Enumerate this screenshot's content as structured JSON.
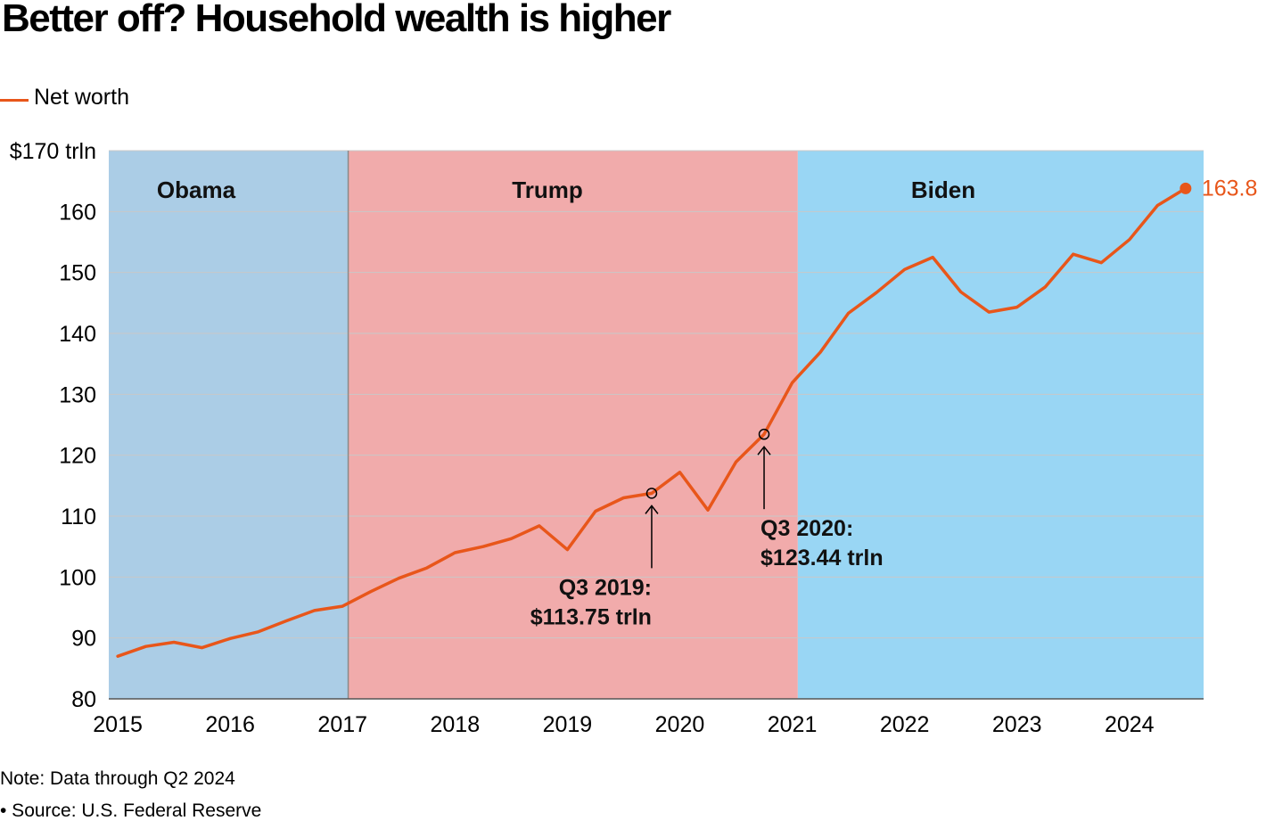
{
  "title": "Better off? Household wealth is higher",
  "legend": {
    "label": "Net worth",
    "color": "#e8561a"
  },
  "colors": {
    "obama": "#abcde6",
    "trump": "#f1abab",
    "biden": "#99d6f4",
    "line": "#e8561a",
    "grid": "#c8c8c8"
  },
  "chart_data": {
    "type": "line",
    "title": "Better off? Household wealth is higher",
    "series": [
      {
        "name": "Net worth",
        "x": [
          2015.0,
          2015.25,
          2015.5,
          2015.75,
          2016.0,
          2016.25,
          2016.5,
          2016.75,
          2017.0,
          2017.25,
          2017.5,
          2017.75,
          2018.0,
          2018.25,
          2018.5,
          2018.75,
          2019.0,
          2019.25,
          2019.5,
          2019.75,
          2020.0,
          2020.25,
          2020.5,
          2020.75,
          2021.0,
          2021.25,
          2021.5,
          2021.75,
          2022.0,
          2022.25,
          2022.5,
          2022.75,
          2023.0,
          2023.25,
          2023.5,
          2023.75,
          2024.0,
          2024.25,
          2024.5
        ],
        "values": [
          87.0,
          88.6,
          89.3,
          88.4,
          89.9,
          91.0,
          92.8,
          94.5,
          95.2,
          97.6,
          99.8,
          101.5,
          104.0,
          105.0,
          106.3,
          108.4,
          104.5,
          110.8,
          113.0,
          113.75,
          117.2,
          111.0,
          118.9,
          123.44,
          131.9,
          136.9,
          143.3,
          146.7,
          150.5,
          152.5,
          146.8,
          143.5,
          144.3,
          147.6,
          153.0,
          151.6,
          155.4,
          161.0,
          163.8
        ]
      }
    ],
    "xlim": [
      2014.92,
      2024.66
    ],
    "ylim": [
      80,
      170
    ],
    "x_ticks": [
      2015,
      2016,
      2017,
      2018,
      2019,
      2020,
      2021,
      2022,
      2023,
      2024
    ],
    "x_tick_labels": [
      "2015",
      "2016",
      "2017",
      "2018",
      "2019",
      "2020",
      "2021",
      "2022",
      "2023",
      "2024"
    ],
    "y_ticks": [
      80,
      90,
      100,
      110,
      120,
      130,
      140,
      150,
      160,
      170
    ],
    "y_tick_labels": [
      "80",
      "90",
      "100",
      "110",
      "120",
      "130",
      "140",
      "150",
      "160",
      "$170 trln"
    ],
    "grid": true,
    "legend_position": "top-left",
    "regions": [
      {
        "label": "Obama",
        "start": 2014.92,
        "end": 2017.05,
        "color_key": "obama"
      },
      {
        "label": "Trump",
        "start": 2017.05,
        "end": 2021.05,
        "color_key": "trump"
      },
      {
        "label": "Biden",
        "start": 2021.05,
        "end": 2024.66,
        "color_key": "biden"
      }
    ],
    "annotations": [
      {
        "x": 2019.75,
        "y": 113.75,
        "lines": [
          "Q3 2019:",
          "$113.75 trln"
        ],
        "align": "right"
      },
      {
        "x": 2020.75,
        "y": 123.44,
        "lines": [
          "Q3 2020:",
          "$123.44 trln"
        ],
        "align": "left"
      }
    ],
    "last_value_label": "163.8"
  },
  "footer": {
    "note": "Note: Data through Q2 2024",
    "source": "• Source: U.S. Federal Reserve"
  }
}
